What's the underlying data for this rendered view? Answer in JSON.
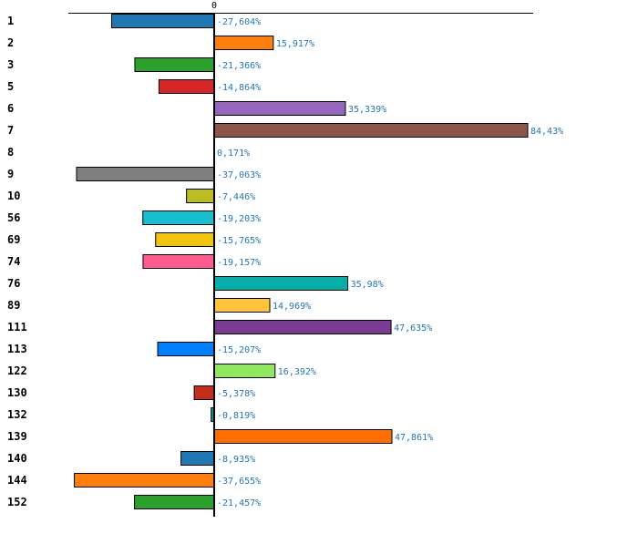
{
  "chart_data": {
    "type": "bar",
    "orientation": "horizontal",
    "title": "",
    "xlabel": "",
    "ylabel": "",
    "zero_label": "0",
    "xlim": [
      -39.3,
      85.9
    ],
    "grid": false,
    "categories": [
      "1",
      "2",
      "3",
      "5",
      "6",
      "7",
      "8",
      "9",
      "10",
      "56",
      "69",
      "74",
      "76",
      "89",
      "111",
      "113",
      "122",
      "130",
      "132",
      "139",
      "140",
      "144",
      "152"
    ],
    "values": [
      -27.604,
      15.917,
      -21.366,
      -14.864,
      35.339,
      84.43,
      0.171,
      -37.063,
      -7.446,
      -19.203,
      -15.765,
      -19.157,
      35.98,
      14.969,
      47.635,
      -15.207,
      16.392,
      -5.378,
      -0.819,
      47.861,
      -8.935,
      -37.655,
      -21.457
    ],
    "labels": [
      "-27,604%",
      "15,917%",
      "-21,366%",
      "-14,864%",
      "35,339%",
      "84,43%",
      "0,171%",
      "-37,063%",
      "-7,446%",
      "-19,203%",
      "-15,765%",
      "-19,157%",
      "35,98%",
      "14,969%",
      "47,635%",
      "-15,207%",
      "16,392%",
      "-5,378%",
      "-0,819%",
      "47,861%",
      "-8,935%",
      "-37,655%",
      "-21,457%"
    ],
    "colors": [
      "#1f77b4",
      "#ff7f0e",
      "#2ca02c",
      "#d62728",
      "#9467bd",
      "#8c564b",
      "#e377c2",
      "#7f7f7f",
      "#bcbd22",
      "#17becf",
      "#f1c40f",
      "#ff5b8f",
      "#05aea8",
      "#ffc33d",
      "#7b3b94",
      "#0080ff",
      "#90e85e",
      "#c22e1b",
      "#1a8fa0",
      "#ff6f00",
      "#1f77b4",
      "#ff7f0e",
      "#2ca02c"
    ]
  }
}
